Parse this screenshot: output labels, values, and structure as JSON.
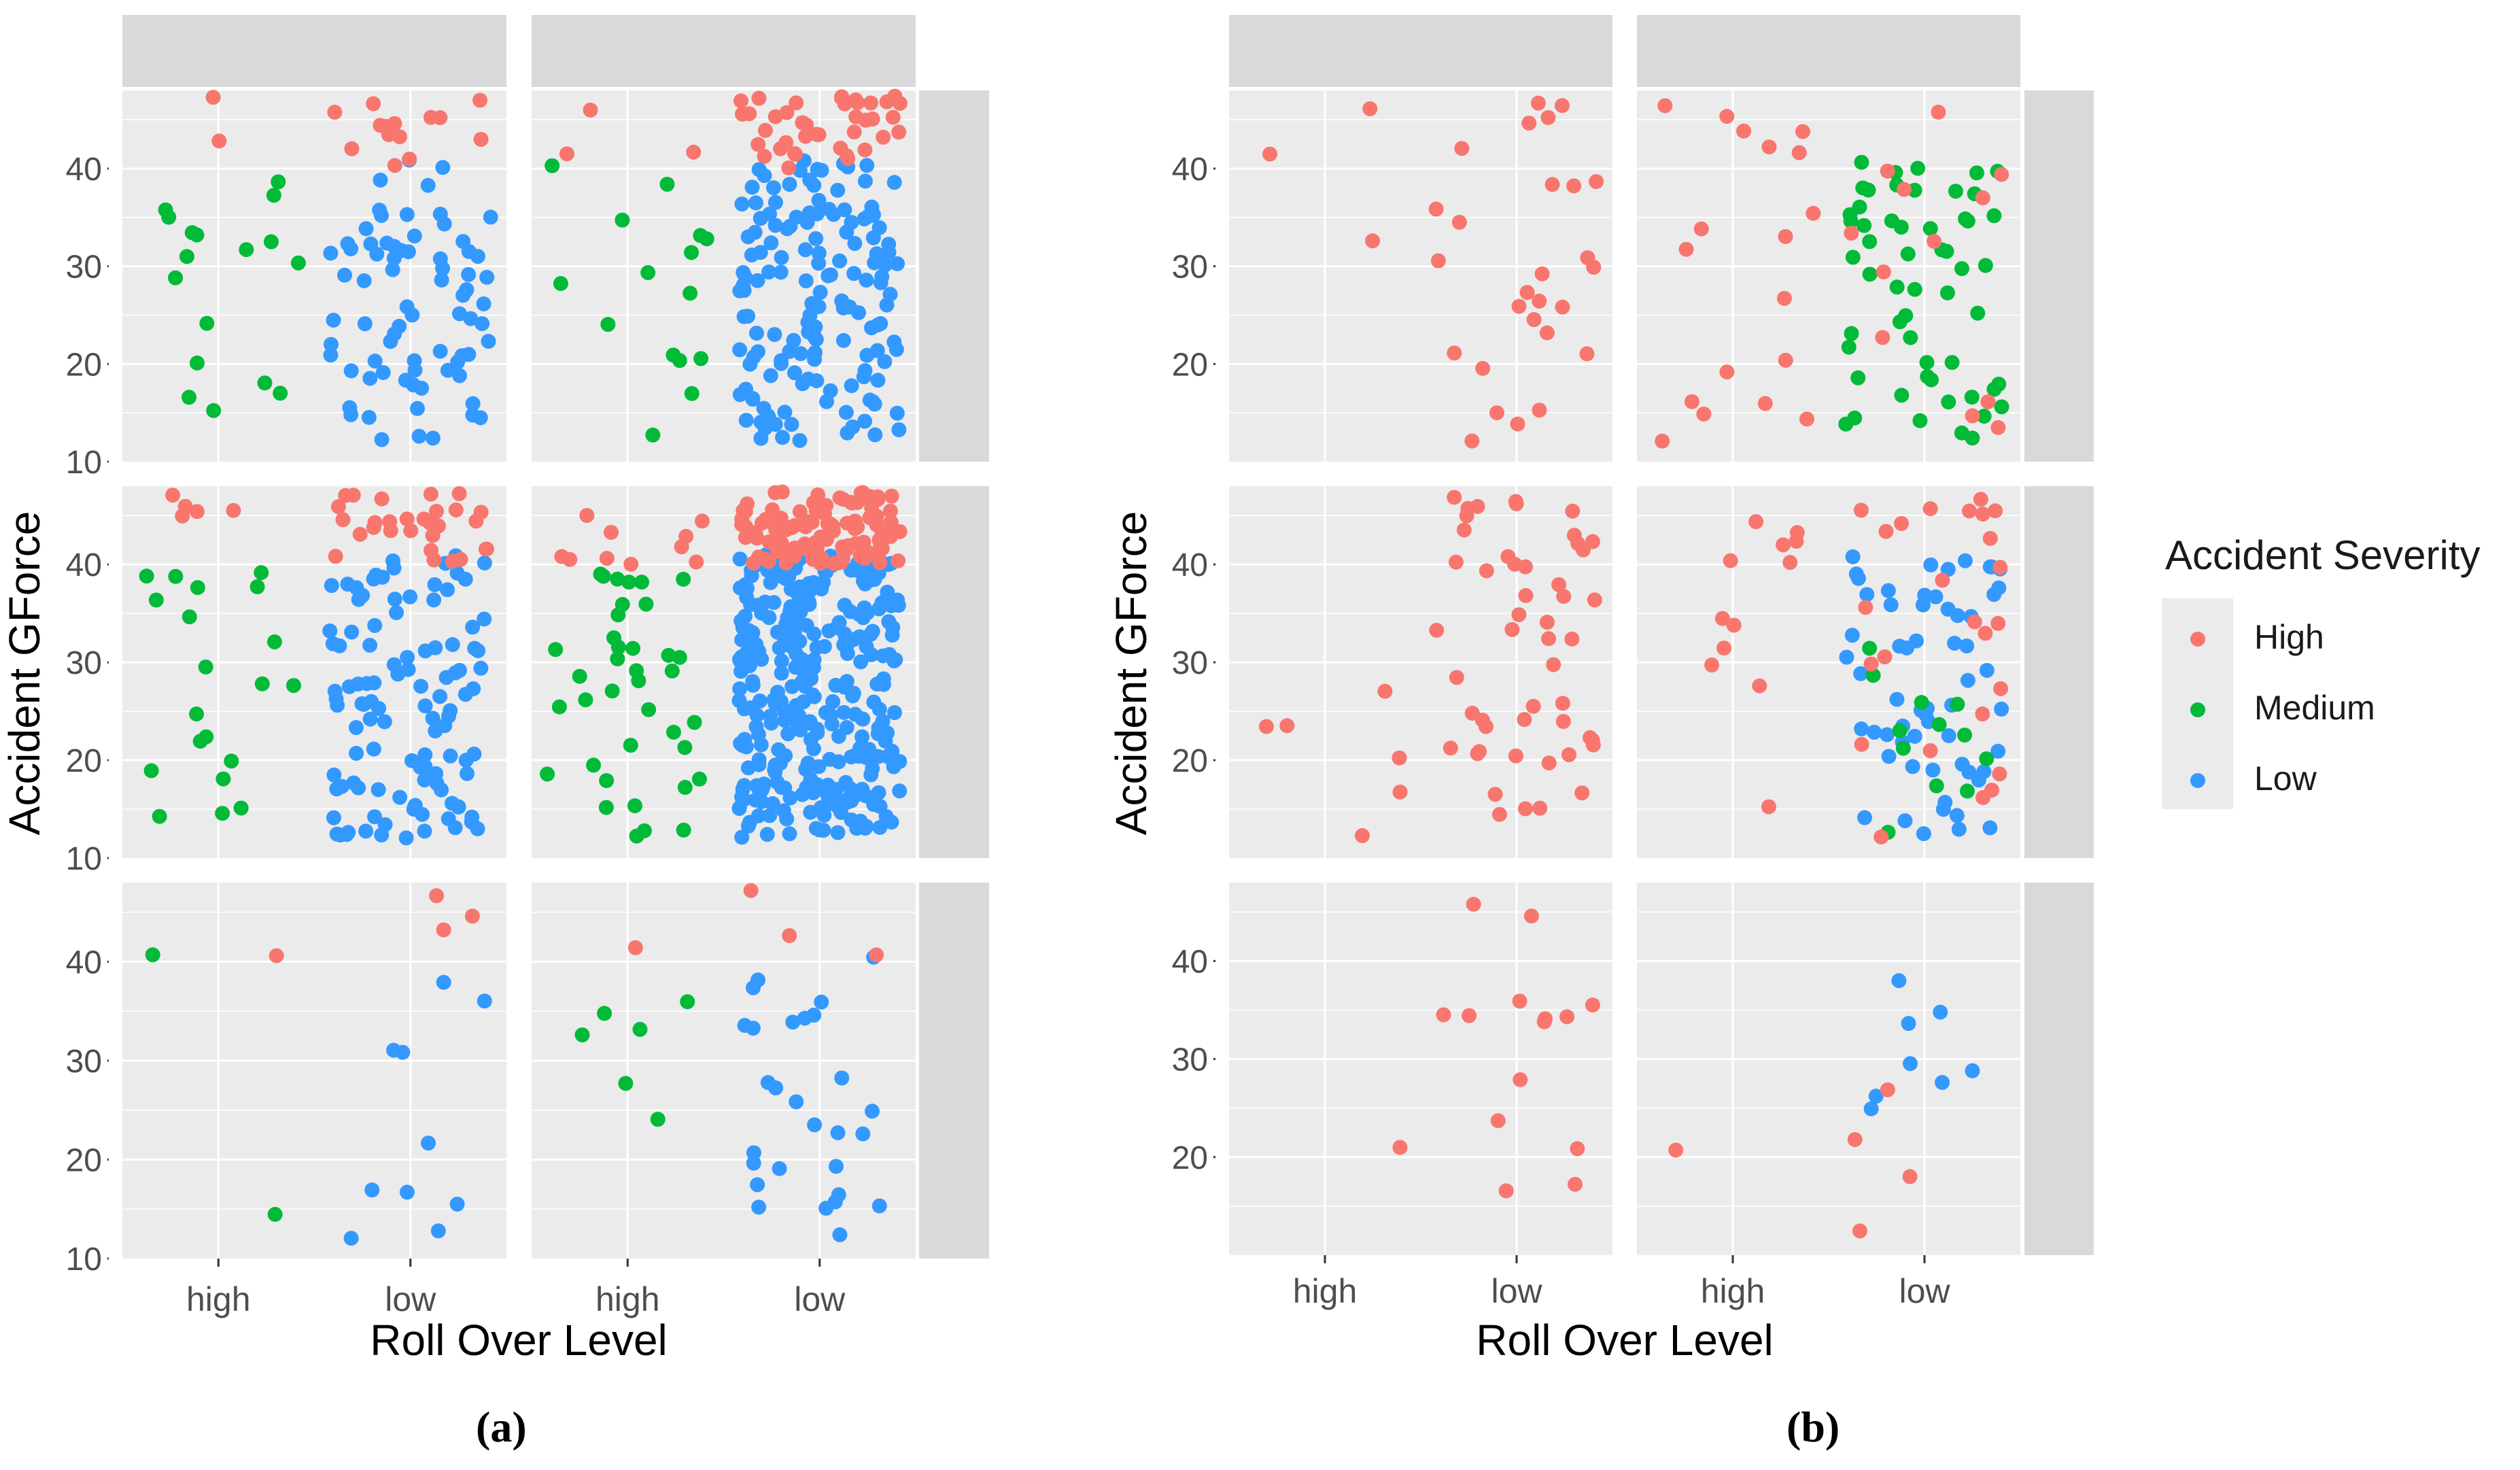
{
  "colors": {
    "panel_bg": "#EBEBEB",
    "strip_bg": "#D9D9D9",
    "grid": "#FFFFFF",
    "High": "#F8766D",
    "Medium": "#00BA38",
    "Low": "#3399FF"
  },
  "legend": {
    "title": "Accident Severity",
    "items": [
      {
        "label": "High",
        "color": "#F8766D"
      },
      {
        "label": "Medium",
        "color": "#00BA38"
      },
      {
        "label": "Low",
        "color": "#3399FF"
      }
    ]
  },
  "sublabels": {
    "a": "(a)",
    "b": "(b)"
  },
  "chart_data": [
    {
      "type": "scatter",
      "subfigure": "(a)",
      "xlabel": "Roll Over Level",
      "ylabel": "Accident GForce",
      "categories": [
        "high",
        "low"
      ],
      "ylim": [
        10,
        48
      ],
      "y_ticks": [
        10,
        20,
        30,
        40
      ],
      "grid": true,
      "facets": [
        {
          "row": 0,
          "col": 0,
          "counts": {
            "high": {
              "High": 2,
              "Medium": 17,
              "Low": 0
            },
            "low": {
              "High": 14,
              "Medium": 0,
              "Low": 75
            }
          }
        },
        {
          "row": 0,
          "col": 1,
          "counts": {
            "high": {
              "High": 3,
              "Medium": 15,
              "Low": 0
            },
            "low": {
              "High": 40,
              "Medium": 0,
              "Low": 150
            }
          }
        },
        {
          "row": 1,
          "col": 0,
          "counts": {
            "high": {
              "High": 5,
              "Medium": 20,
              "Low": 0
            },
            "low": {
              "High": 30,
              "Medium": 0,
              "Low": 110
            }
          }
        },
        {
          "row": 1,
          "col": 1,
          "counts": {
            "high": {
              "High": 10,
              "Medium": 38,
              "Low": 0
            },
            "low": {
              "High": 110,
              "Medium": 0,
              "Low": 330
            }
          }
        },
        {
          "row": 2,
          "col": 0,
          "counts": {
            "high": {
              "High": 1,
              "Medium": 2,
              "Low": 0
            },
            "low": {
              "High": 3,
              "Medium": 0,
              "Low": 10
            }
          }
        },
        {
          "row": 2,
          "col": 1,
          "counts": {
            "high": {
              "High": 1,
              "Medium": 6,
              "Low": 0
            },
            "low": {
              "High": 3,
              "Medium": 0,
              "Low": 28
            }
          }
        }
      ]
    },
    {
      "type": "scatter",
      "subfigure": "(b)",
      "xlabel": "Roll Over Level",
      "ylabel": "Accident GForce",
      "categories": [
        "high",
        "low"
      ],
      "ylim": [
        10,
        48
      ],
      "y_ticks": [
        20,
        30,
        40
      ],
      "grid": true,
      "facets": [
        {
          "row": 0,
          "col": 0,
          "counts": {
            "high": {
              "High": 3,
              "Medium": 0,
              "Low": 0
            },
            "low": {
              "High": 27,
              "Medium": 0,
              "Low": 0
            }
          }
        },
        {
          "row": 0,
          "col": 1,
          "counts": {
            "high": {
              "High": 18,
              "Medium": 0,
              "Low": 0
            },
            "low": {
              "High": 12,
              "Medium": 55,
              "Low": 0
            }
          }
        },
        {
          "row": 1,
          "col": 0,
          "counts": {
            "high": {
              "High": 6,
              "Medium": 0,
              "Low": 0
            },
            "low": {
              "High": 50,
              "Medium": 0,
              "Low": 0
            }
          }
        },
        {
          "row": 1,
          "col": 1,
          "counts": {
            "high": {
              "High": 12,
              "Medium": 0,
              "Low": 0
            },
            "low": {
              "High": 25,
              "Medium": 12,
              "Low": 60
            }
          }
        },
        {
          "row": 2,
          "col": 0,
          "counts": {
            "high": {
              "High": 1,
              "Medium": 0,
              "Low": 0
            },
            "low": {
              "High": 14,
              "Medium": 0,
              "Low": 0
            }
          }
        },
        {
          "row": 2,
          "col": 1,
          "counts": {
            "high": {
              "High": 1,
              "Medium": 0,
              "Low": 0
            },
            "low": {
              "High": 4,
              "Medium": 0,
              "Low": 8
            }
          }
        }
      ]
    }
  ]
}
